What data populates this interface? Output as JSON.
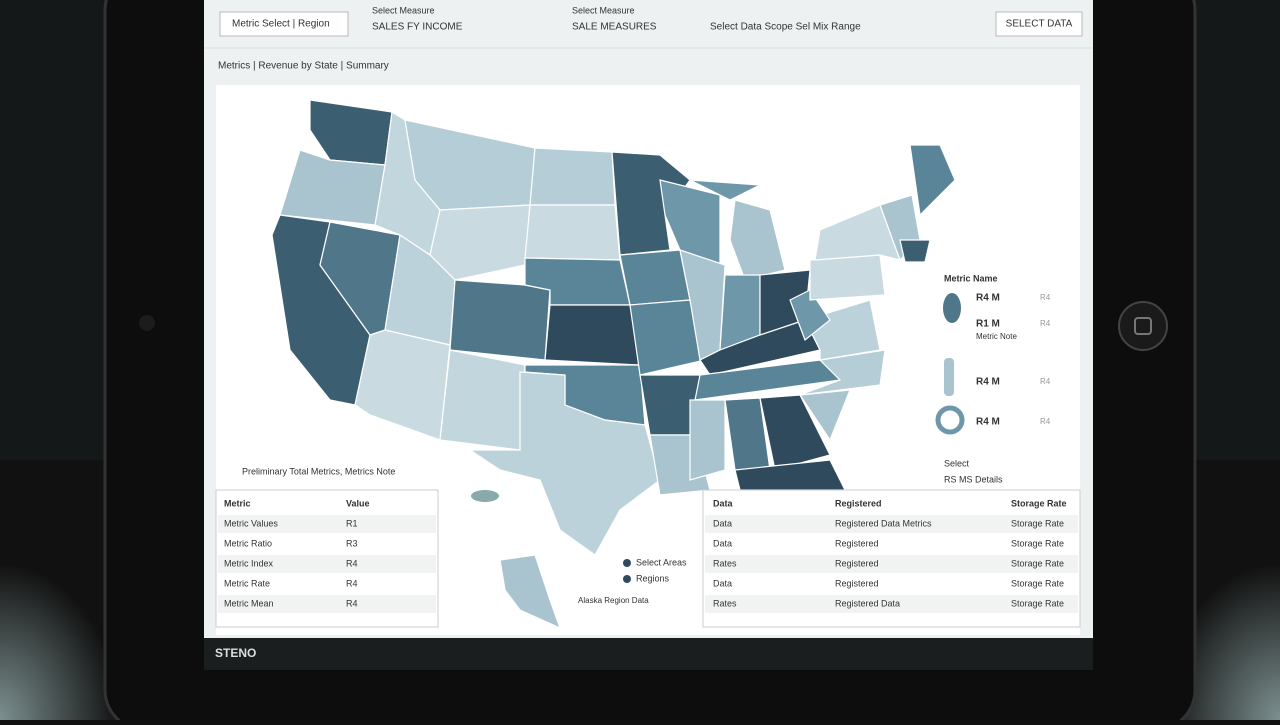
{
  "toolbar": {
    "filters": [
      {
        "label": "Metric Select | Region"
      },
      {
        "label": "Select Measure",
        "value": "SALES FY INCOME"
      },
      {
        "label": "Select Measure",
        "value": "SALE MEASURES"
      },
      {
        "label": "Select Data Scope Sel Mix Range"
      }
    ],
    "button": "SELECT DATA"
  },
  "subtitle": "Metrics | Revenue by State | Summary",
  "map": {
    "caption": "Preliminary Total Metrics, Metrics Note",
    "inset_legend": [
      "Select Areas",
      "Regions"
    ],
    "inset_caption": "Alaska Region Data",
    "legend": {
      "title": "Metric Name",
      "items": [
        {
          "value": "R4 M",
          "note": "R4"
        },
        {
          "value": "R1 M",
          "note": "R4"
        },
        {
          "value": "R4 M",
          "note": "R4"
        },
        {
          "value": "R4 M",
          "note": "R4"
        }
      ],
      "detail": "Metric Note",
      "footer": "Select",
      "footer2": "RS MS Details"
    }
  },
  "left_table": {
    "header": [
      "Metric",
      "Value"
    ],
    "rows": [
      [
        "Metric Values",
        "R1"
      ],
      [
        "Metric Ratio",
        "R3"
      ],
      [
        "Metric Index",
        "R4"
      ],
      [
        "Metric Rate",
        "R4"
      ],
      [
        "Metric Mean",
        "R4"
      ]
    ]
  },
  "right_table": {
    "header": [
      "Data",
      "Registered",
      "Storage Rate"
    ],
    "rows": [
      [
        "Data",
        "Registered Data Metrics",
        "Storage Rate"
      ],
      [
        "Data",
        "Registered",
        "Storage Rate"
      ],
      [
        "Rates",
        "Registered",
        "Storage Rate"
      ],
      [
        "Data",
        "Registered",
        "Storage Rate"
      ],
      [
        "Rates",
        "Registered Data",
        "Storage Rate"
      ]
    ]
  },
  "footer": "STENO"
}
